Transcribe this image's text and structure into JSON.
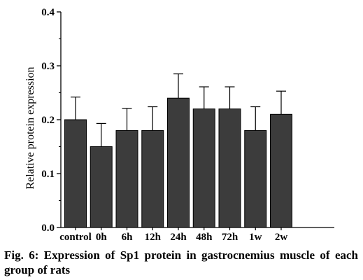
{
  "chart_data": {
    "type": "bar",
    "categories": [
      "control",
      "0h",
      "6h",
      "12h",
      "24h",
      "48h",
      "72h",
      "1w",
      "2w"
    ],
    "values": [
      0.2,
      0.15,
      0.18,
      0.18,
      0.24,
      0.22,
      0.22,
      0.18,
      0.21
    ],
    "error_upper": [
      0.042,
      0.043,
      0.041,
      0.044,
      0.045,
      0.041,
      0.041,
      0.044,
      0.043
    ],
    "ylabel": "Relative protein expression",
    "xlabel": "",
    "ylim": [
      0.0,
      0.4
    ],
    "y_ticks": [
      "0.0",
      "0.1",
      "0.2",
      "0.3",
      "0.4"
    ],
    "y_tick_values": [
      0.0,
      0.1,
      0.2,
      0.3,
      0.4
    ],
    "bar_color": "#3c3c3c",
    "grid": false,
    "legend": "none"
  },
  "caption": "Fig. 6: Expression of Sp1 protein in gastrocnemius muscle of each group of rats"
}
